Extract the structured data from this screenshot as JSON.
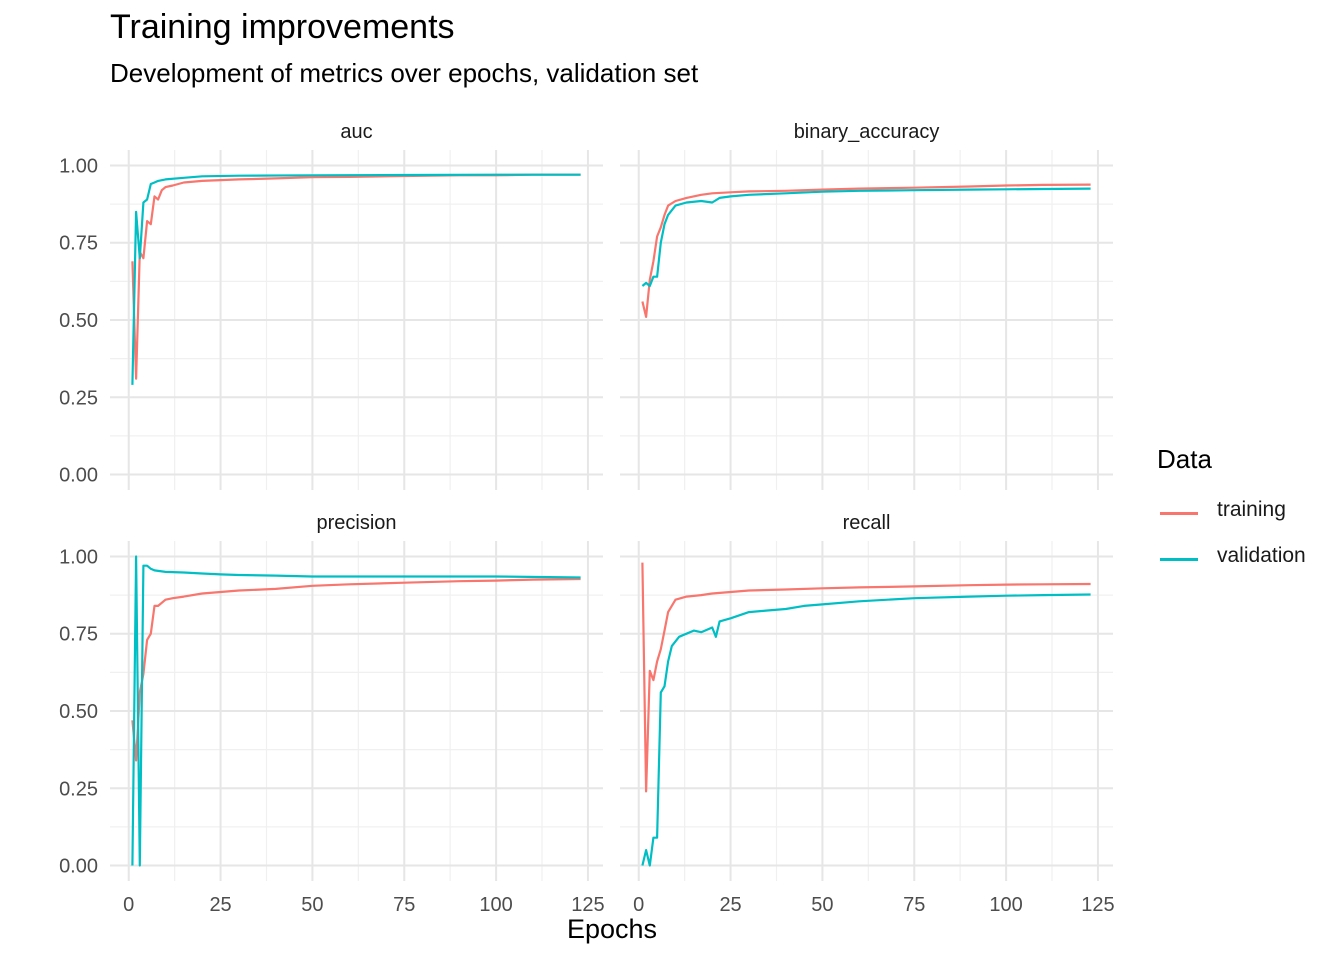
{
  "title": "Training improvements",
  "subtitle": "Development of metrics over epochs, validation set",
  "legend": {
    "title": "Data",
    "items": [
      {
        "label": "training",
        "color": "#F8766D"
      },
      {
        "label": "validation",
        "color": "#00BFC4"
      }
    ]
  },
  "chart_data": {
    "type": "line",
    "title": "Training improvements",
    "subtitle": "Development of metrics over epochs, validation set",
    "xlabel": "Epochs",
    "ylabel": "",
    "xlim": [
      1,
      123
    ],
    "ylim": [
      0,
      1
    ],
    "x_ticks": [
      0,
      25,
      50,
      75,
      100,
      125
    ],
    "x_tick_labels": [
      "0",
      "25",
      "50",
      "75",
      "100",
      "125"
    ],
    "y_ticks": [
      0,
      0.25,
      0.5,
      0.75,
      1
    ],
    "y_tick_labels": [
      "0.00",
      "0.25",
      "0.50",
      "0.75",
      "1.00"
    ],
    "grid": true,
    "legend_position": "right",
    "panels": [
      {
        "name": "auc",
        "series": [
          {
            "name": "training",
            "color": "#F8766D",
            "points": [
              [
                1,
                0.69
              ],
              [
                2,
                0.31
              ],
              [
                3,
                0.72
              ],
              [
                4,
                0.7
              ],
              [
                5,
                0.82
              ],
              [
                6,
                0.81
              ],
              [
                7,
                0.9
              ],
              [
                8,
                0.89
              ],
              [
                9,
                0.92
              ],
              [
                10,
                0.93
              ],
              [
                12,
                0.935
              ],
              [
                15,
                0.945
              ],
              [
                20,
                0.95
              ],
              [
                30,
                0.955
              ],
              [
                40,
                0.958
              ],
              [
                50,
                0.962
              ],
              [
                60,
                0.963
              ],
              [
                75,
                0.966
              ],
              [
                90,
                0.968
              ],
              [
                100,
                0.968
              ],
              [
                110,
                0.97
              ],
              [
                123,
                0.97
              ]
            ]
          },
          {
            "name": "validation",
            "color": "#00BFC4",
            "points": [
              [
                1,
                0.29
              ],
              [
                2,
                0.85
              ],
              [
                3,
                0.7
              ],
              [
                4,
                0.88
              ],
              [
                5,
                0.89
              ],
              [
                6,
                0.94
              ],
              [
                7,
                0.945
              ],
              [
                8,
                0.95
              ],
              [
                10,
                0.955
              ],
              [
                15,
                0.96
              ],
              [
                20,
                0.965
              ],
              [
                30,
                0.967
              ],
              [
                50,
                0.968
              ],
              [
                75,
                0.969
              ],
              [
                100,
                0.97
              ],
              [
                123,
                0.97
              ]
            ]
          }
        ]
      },
      {
        "name": "binary_accuracy",
        "series": [
          {
            "name": "training",
            "color": "#F8766D",
            "points": [
              [
                1,
                0.56
              ],
              [
                2,
                0.51
              ],
              [
                3,
                0.63
              ],
              [
                4,
                0.69
              ],
              [
                5,
                0.77
              ],
              [
                6,
                0.8
              ],
              [
                7,
                0.84
              ],
              [
                8,
                0.87
              ],
              [
                10,
                0.885
              ],
              [
                13,
                0.895
              ],
              [
                17,
                0.905
              ],
              [
                20,
                0.91
              ],
              [
                25,
                0.913
              ],
              [
                30,
                0.916
              ],
              [
                40,
                0.918
              ],
              [
                50,
                0.922
              ],
              [
                60,
                0.925
              ],
              [
                75,
                0.928
              ],
              [
                90,
                0.932
              ],
              [
                100,
                0.935
              ],
              [
                110,
                0.937
              ],
              [
                123,
                0.938
              ]
            ]
          },
          {
            "name": "validation",
            "color": "#00BFC4",
            "points": [
              [
                1,
                0.61
              ],
              [
                2,
                0.62
              ],
              [
                3,
                0.61
              ],
              [
                4,
                0.64
              ],
              [
                5,
                0.64
              ],
              [
                6,
                0.75
              ],
              [
                7,
                0.81
              ],
              [
                8,
                0.84
              ],
              [
                10,
                0.87
              ],
              [
                13,
                0.88
              ],
              [
                17,
                0.885
              ],
              [
                20,
                0.88
              ],
              [
                22,
                0.895
              ],
              [
                25,
                0.9
              ],
              [
                30,
                0.905
              ],
              [
                40,
                0.91
              ],
              [
                50,
                0.915
              ],
              [
                60,
                0.918
              ],
              [
                75,
                0.92
              ],
              [
                90,
                0.922
              ],
              [
                100,
                0.923
              ],
              [
                123,
                0.925
              ]
            ]
          }
        ]
      },
      {
        "name": "precision",
        "series": [
          {
            "name": "training",
            "color": "#F8766D",
            "points": [
              [
                1,
                0.47
              ],
              [
                2,
                0.34
              ],
              [
                3,
                0.56
              ],
              [
                4,
                0.62
              ],
              [
                5,
                0.73
              ],
              [
                6,
                0.75
              ],
              [
                7,
                0.84
              ],
              [
                8,
                0.84
              ],
              [
                10,
                0.86
              ],
              [
                12,
                0.865
              ],
              [
                15,
                0.87
              ],
              [
                20,
                0.88
              ],
              [
                25,
                0.885
              ],
              [
                30,
                0.89
              ],
              [
                40,
                0.895
              ],
              [
                50,
                0.905
              ],
              [
                60,
                0.91
              ],
              [
                75,
                0.915
              ],
              [
                90,
                0.92
              ],
              [
                100,
                0.922
              ],
              [
                110,
                0.925
              ],
              [
                123,
                0.927
              ]
            ]
          },
          {
            "name": "validation",
            "color": "#00BFC4",
            "points": [
              [
                1,
                0.0
              ],
              [
                2,
                1.0
              ],
              [
                3,
                0.0
              ],
              [
                4,
                0.97
              ],
              [
                5,
                0.97
              ],
              [
                6,
                0.96
              ],
              [
                7,
                0.955
              ],
              [
                10,
                0.95
              ],
              [
                15,
                0.948
              ],
              [
                20,
                0.945
              ],
              [
                25,
                0.942
              ],
              [
                30,
                0.94
              ],
              [
                40,
                0.938
              ],
              [
                50,
                0.935
              ],
              [
                75,
                0.935
              ],
              [
                100,
                0.935
              ],
              [
                123,
                0.932
              ]
            ]
          }
        ]
      },
      {
        "name": "recall",
        "series": [
          {
            "name": "training",
            "color": "#F8766D",
            "points": [
              [
                1,
                0.98
              ],
              [
                2,
                0.24
              ],
              [
                3,
                0.63
              ],
              [
                4,
                0.6
              ],
              [
                5,
                0.66
              ],
              [
                6,
                0.7
              ],
              [
                7,
                0.76
              ],
              [
                8,
                0.82
              ],
              [
                10,
                0.86
              ],
              [
                13,
                0.87
              ],
              [
                17,
                0.875
              ],
              [
                20,
                0.88
              ],
              [
                25,
                0.885
              ],
              [
                30,
                0.89
              ],
              [
                40,
                0.893
              ],
              [
                50,
                0.897
              ],
              [
                60,
                0.9
              ],
              [
                75,
                0.903
              ],
              [
                90,
                0.907
              ],
              [
                100,
                0.909
              ],
              [
                110,
                0.91
              ],
              [
                123,
                0.911
              ]
            ]
          },
          {
            "name": "validation",
            "color": "#00BFC4",
            "points": [
              [
                1,
                0.0
              ],
              [
                2,
                0.05
              ],
              [
                3,
                0.0
              ],
              [
                4,
                0.09
              ],
              [
                5,
                0.09
              ],
              [
                6,
                0.56
              ],
              [
                7,
                0.58
              ],
              [
                8,
                0.66
              ],
              [
                9,
                0.71
              ],
              [
                11,
                0.74
              ],
              [
                13,
                0.75
              ],
              [
                15,
                0.76
              ],
              [
                17,
                0.755
              ],
              [
                20,
                0.77
              ],
              [
                21,
                0.74
              ],
              [
                22,
                0.79
              ],
              [
                25,
                0.8
              ],
              [
                30,
                0.82
              ],
              [
                35,
                0.825
              ],
              [
                40,
                0.83
              ],
              [
                45,
                0.84
              ],
              [
                50,
                0.845
              ],
              [
                60,
                0.855
              ],
              [
                75,
                0.865
              ],
              [
                90,
                0.87
              ],
              [
                100,
                0.873
              ],
              [
                110,
                0.875
              ],
              [
                123,
                0.877
              ]
            ]
          }
        ]
      }
    ]
  }
}
